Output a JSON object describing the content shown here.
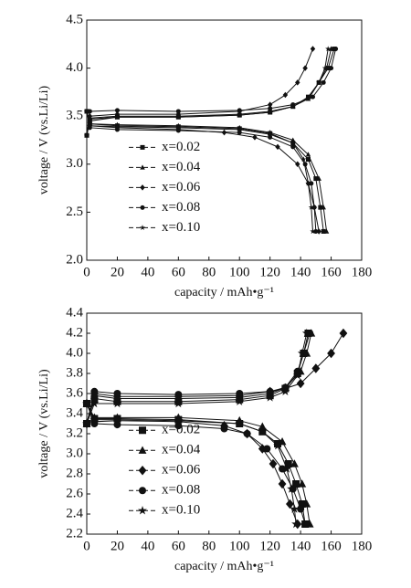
{
  "chart_data": [
    {
      "type": "line",
      "xlabel": "capacity / mAh•g⁻¹",
      "ylabel": "voltage / V (vs.Li/Li)",
      "xlim": [
        0,
        180
      ],
      "ylim": [
        2.0,
        4.5
      ],
      "xticks": [
        0,
        20,
        40,
        60,
        80,
        100,
        120,
        140,
        160,
        180
      ],
      "yticks": [
        {
          "value": 2.0,
          "label": "2.0"
        },
        2.5,
        {
          "value": 3.0,
          "label": "3.0"
        },
        3.5,
        {
          "value": 4.0,
          "label": "4.0"
        },
        4.5
      ],
      "legend": "center left",
      "marker_size": 2.5,
      "series": [
        {
          "name": "x=0.02",
          "color": "#111111",
          "marker": "square",
          "x": [
            0,
            2,
            20,
            60,
            100,
            120,
            135,
            145,
            152,
            158,
            162,
            null,
            0,
            2,
            20,
            60,
            100,
            120,
            135,
            145,
            150,
            153,
            155
          ],
          "values": [
            3.3,
            3.45,
            3.49,
            3.49,
            3.51,
            3.54,
            3.6,
            3.7,
            3.85,
            4.0,
            4.2,
            null,
            3.55,
            3.42,
            3.4,
            3.39,
            3.37,
            3.32,
            3.22,
            3.05,
            2.85,
            2.55,
            2.3
          ]
        },
        {
          "name": "x=0.04",
          "color": "#111111",
          "marker": "triangle",
          "x": [
            0,
            2,
            20,
            60,
            100,
            120,
            135,
            145,
            152,
            157,
            160,
            null,
            0,
            2,
            20,
            60,
            100,
            120,
            135,
            145,
            152,
            155,
            157
          ],
          "values": [
            3.3,
            3.48,
            3.5,
            3.5,
            3.52,
            3.55,
            3.6,
            3.68,
            3.85,
            4.0,
            4.2,
            null,
            3.55,
            3.42,
            3.41,
            3.4,
            3.38,
            3.33,
            3.25,
            3.1,
            2.85,
            2.55,
            2.3
          ]
        },
        {
          "name": "x=0.06",
          "color": "#111111",
          "marker": "diamond",
          "x": [
            0,
            2,
            20,
            60,
            100,
            120,
            130,
            138,
            143,
            148,
            null,
            0,
            2,
            20,
            60,
            90,
            110,
            125,
            138,
            145,
            149,
            152
          ],
          "values": [
            3.3,
            3.5,
            3.52,
            3.52,
            3.55,
            3.62,
            3.72,
            3.85,
            4.0,
            4.2,
            null,
            3.55,
            3.4,
            3.38,
            3.36,
            3.33,
            3.28,
            3.18,
            3.0,
            2.8,
            2.55,
            2.3
          ]
        },
        {
          "name": "x=0.08",
          "color": "#111111",
          "marker": "circle",
          "x": [
            0,
            2,
            20,
            60,
            100,
            120,
            135,
            148,
            155,
            160,
            163,
            null,
            0,
            2,
            20,
            60,
            100,
            120,
            135,
            143,
            147,
            149,
            150
          ],
          "values": [
            3.3,
            3.55,
            3.56,
            3.55,
            3.56,
            3.58,
            3.62,
            3.7,
            3.85,
            4.0,
            4.2,
            null,
            3.55,
            3.38,
            3.36,
            3.35,
            3.33,
            3.28,
            3.18,
            3.0,
            2.8,
            2.55,
            2.3
          ]
        },
        {
          "name": "x=0.10",
          "color": "#111111",
          "marker": "star",
          "x": [
            0,
            2,
            20,
            60,
            100,
            120,
            135,
            146,
            152,
            156,
            158,
            null,
            0,
            2,
            20,
            60,
            100,
            120,
            135,
            142,
            145,
            147,
            148
          ],
          "values": [
            3.3,
            3.47,
            3.49,
            3.49,
            3.51,
            3.54,
            3.6,
            3.7,
            3.85,
            4.0,
            4.2,
            null,
            3.55,
            3.4,
            3.39,
            3.38,
            3.36,
            3.31,
            3.22,
            3.05,
            2.8,
            2.55,
            2.3
          ]
        }
      ]
    },
    {
      "type": "line",
      "xlabel": "capacity / mAh•g⁻¹",
      "ylabel": "voltage / V (vs.Li/Li)",
      "xlim": [
        0,
        180
      ],
      "ylim": [
        2.2,
        4.4
      ],
      "xticks": [
        0,
        20,
        40,
        60,
        80,
        100,
        120,
        140,
        160,
        180
      ],
      "yticks": [
        2.2,
        2.4,
        2.6,
        2.8,
        {
          "value": 3.0,
          "label": "3.0"
        },
        3.2,
        3.4,
        3.6,
        3.8,
        {
          "value": 4.0,
          "label": "4.0"
        },
        4.2,
        4.4
      ],
      "legend": "center left",
      "marker_size": 4,
      "series": [
        {
          "name": "x=0.02",
          "color": "#111111",
          "marker": "square",
          "x": [
            0,
            5,
            20,
            60,
            100,
            120,
            130,
            138,
            142,
            145,
            null,
            0,
            5,
            20,
            60,
            100,
            115,
            125,
            132,
            137,
            141,
            143
          ],
          "values": [
            3.3,
            3.55,
            3.52,
            3.52,
            3.54,
            3.58,
            3.65,
            3.8,
            4.0,
            4.2,
            null,
            3.5,
            3.35,
            3.35,
            3.34,
            3.3,
            3.22,
            3.1,
            2.9,
            2.7,
            2.5,
            2.3
          ]
        },
        {
          "name": "x=0.04",
          "color": "#111111",
          "marker": "triangle",
          "x": [
            0,
            5,
            20,
            60,
            100,
            120,
            130,
            140,
            144,
            147,
            null,
            0,
            5,
            20,
            60,
            100,
            115,
            128,
            136,
            141,
            144,
            146
          ],
          "values": [
            3.3,
            3.58,
            3.55,
            3.55,
            3.56,
            3.6,
            3.66,
            3.82,
            4.0,
            4.2,
            null,
            3.5,
            3.36,
            3.36,
            3.36,
            3.33,
            3.27,
            3.12,
            2.9,
            2.7,
            2.5,
            2.3
          ]
        },
        {
          "name": "x=0.06",
          "color": "#111111",
          "marker": "diamond",
          "x": [
            0,
            5,
            20,
            60,
            100,
            120,
            130,
            140,
            150,
            160,
            168,
            null,
            0,
            5,
            20,
            60,
            90,
            105,
            115,
            122,
            128,
            133,
            138
          ],
          "values": [
            3.3,
            3.6,
            3.57,
            3.57,
            3.58,
            3.62,
            3.65,
            3.7,
            3.85,
            4.0,
            4.2,
            null,
            3.5,
            3.32,
            3.33,
            3.32,
            3.28,
            3.2,
            3.05,
            2.9,
            2.7,
            2.5,
            2.3
          ]
        },
        {
          "name": "x=0.08",
          "color": "#111111",
          "marker": "circle",
          "x": [
            0,
            5,
            20,
            60,
            100,
            120,
            130,
            138,
            142,
            146,
            null,
            0,
            5,
            20,
            60,
            90,
            105,
            118,
            128,
            135,
            140,
            143
          ],
          "values": [
            3.3,
            3.62,
            3.6,
            3.59,
            3.6,
            3.62,
            3.66,
            3.82,
            4.0,
            4.2,
            null,
            3.5,
            3.3,
            3.29,
            3.28,
            3.25,
            3.2,
            3.05,
            2.85,
            2.65,
            2.45,
            2.3
          ]
        },
        {
          "name": "x=0.10",
          "color": "#111111",
          "marker": "star",
          "x": [
            0,
            5,
            20,
            60,
            100,
            120,
            130,
            138,
            141,
            144,
            null,
            0,
            5,
            20,
            60,
            100,
            115,
            125,
            131,
            134,
            136,
            137
          ],
          "values": [
            3.3,
            3.5,
            3.5,
            3.5,
            3.52,
            3.56,
            3.62,
            3.78,
            4.0,
            4.2,
            null,
            3.5,
            3.34,
            3.34,
            3.33,
            3.3,
            3.22,
            3.08,
            2.85,
            2.65,
            2.45,
            2.3
          ]
        }
      ]
    }
  ]
}
